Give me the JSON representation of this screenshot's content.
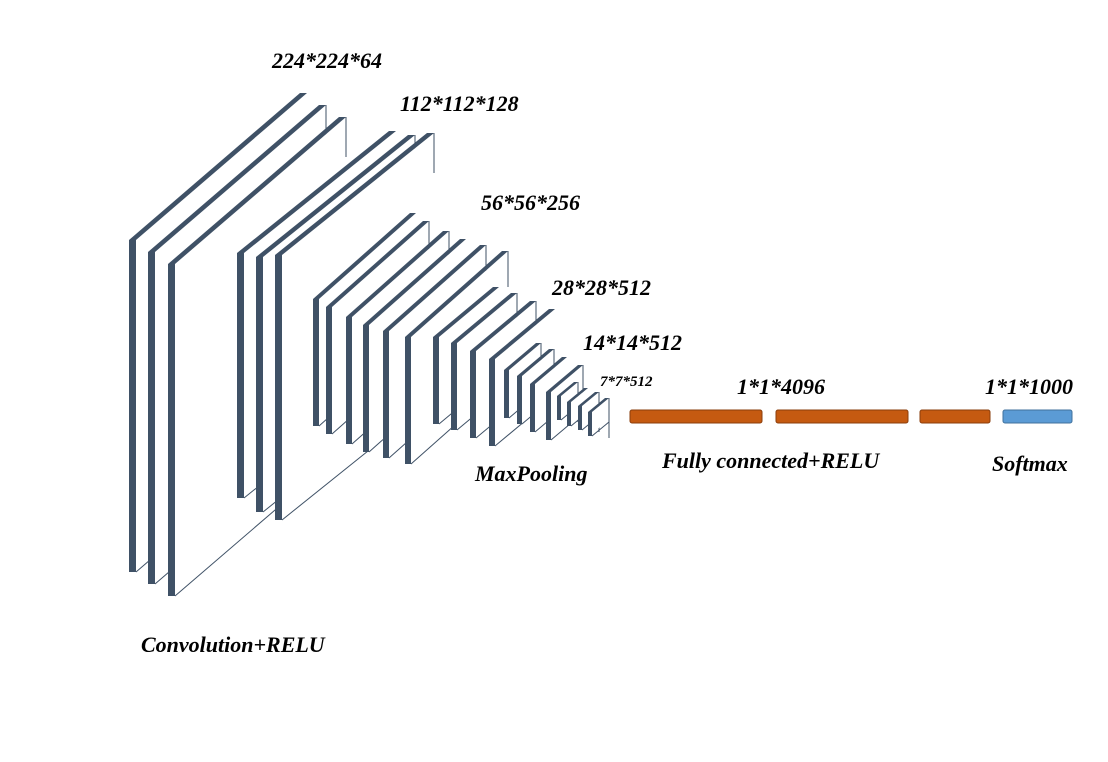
{
  "colors": {
    "layer_edge": "#3f5166",
    "layer_face": "#ffffff",
    "fc_fill": "#c55a11",
    "fc_stroke": "#8a3d0b",
    "softmax_fill": "#5b9bd5",
    "softmax_stroke": "#41719c",
    "text": "#000000"
  },
  "dims": {
    "d224": "224*224*64",
    "d112": "112*112*128",
    "d56": "56*56*256",
    "d28": "28*28*512",
    "d14": "14*14*512",
    "d7": "7*7*512",
    "fc": "1*1*4096",
    "out": "1*1*1000"
  },
  "labels": {
    "conv": "Convolution+RELU",
    "pool": "MaxPooling",
    "fc": "Fully connected+RELU",
    "softmax": "Softmax"
  }
}
